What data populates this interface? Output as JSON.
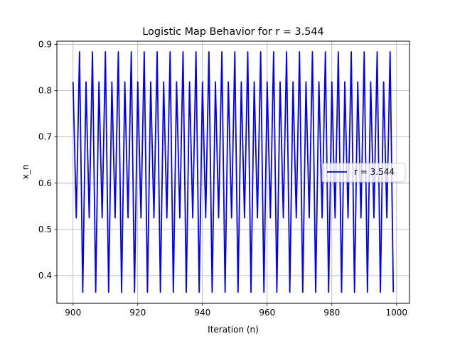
{
  "chart_data": {
    "type": "line",
    "title": "Logistic Map Behavior for r = 3.544",
    "xlabel": "Iteration (n)",
    "ylabel": "x_n",
    "xlim": [
      895,
      1004
    ],
    "ylim": [
      0.34,
      0.907
    ],
    "xticks": [
      900,
      920,
      940,
      960,
      980,
      1000
    ],
    "yticks": [
      0.4,
      0.5,
      0.6,
      0.7,
      0.8,
      0.9
    ],
    "grid": true,
    "legend_position": "center-right",
    "series": [
      {
        "name": "r = 3.544",
        "color": "#0000ff",
        "x_start": 900,
        "x_end": 999,
        "cycle": [
          0.819,
          0.525,
          0.884,
          0.364
        ]
      }
    ]
  }
}
